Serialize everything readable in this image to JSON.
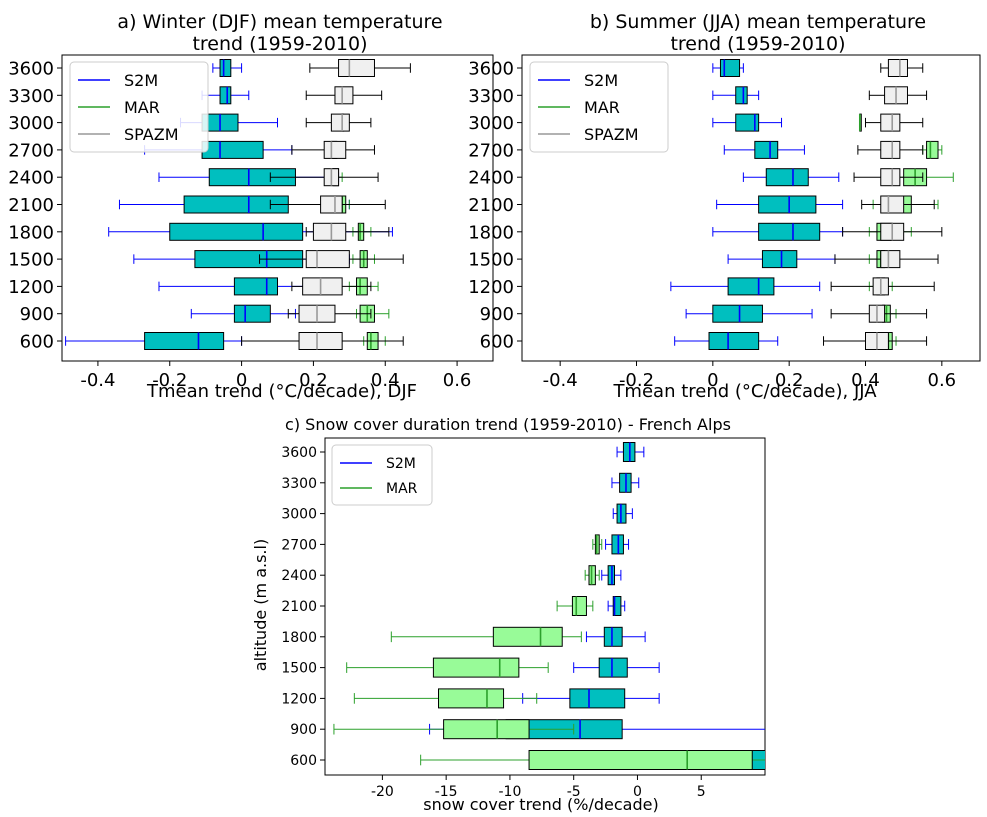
{
  "panels": [
    {
      "title_line1": "a) Winter (DJF) mean temperature",
      "title_line2": "trend (1959-2010)",
      "xlabel": "Tmean trend (°C/decade), DJF"
    },
    {
      "title_line1": "b) Summer (JJA) mean temperature",
      "title_line2": "trend (1959-2010)",
      "xlabel": "Tmean trend (°C/decade), JJA"
    },
    {
      "title_line1": "c) Snow cover duration trend (1959-2010) - French Alps",
      "xlabel": "snow cover trend (%/decade)",
      "ylabel": "altitude (m a.s.l)"
    }
  ],
  "colors": {
    "S2M_line": "#0000ff",
    "S2M_fill": "#00bfbf",
    "MAR_line": "#2ca02c",
    "MAR_fill": "#98fb98",
    "SPAZM_line": "#999999",
    "SPAZM_fill": "#f0f0f0"
  },
  "chart_data": [
    {
      "type": "boxplot",
      "title": "a) Winter (DJF) mean temperature trend (1959-2010)",
      "xlabel": "Tmean trend (°C/decade), DJF",
      "xlim": [
        -0.5,
        0.7
      ],
      "xticks": [
        -0.4,
        -0.2,
        0,
        0.2,
        0.4,
        0.6
      ],
      "xtick_labels": [
        "-0.4",
        "-0.2",
        "0",
        "0.2",
        "0.4",
        "0.6"
      ],
      "categories": [
        600,
        900,
        1200,
        1500,
        1800,
        2100,
        2400,
        2700,
        3000,
        3300,
        3600
      ],
      "category_labels": [
        "600",
        "900",
        "1200",
        "1500",
        "1800",
        "2100",
        "2400",
        "2700",
        "3000",
        "3300",
        "3600"
      ],
      "legend": {
        "position": "upper left",
        "entries": [
          "S2M",
          "MAR",
          "SPAZM"
        ]
      },
      "series": [
        {
          "name": "S2M",
          "boxes": [
            [
              -0.49,
              -0.27,
              -0.12,
              -0.05,
              0.0
            ],
            [
              -0.14,
              -0.02,
              0.01,
              0.08,
              0.15
            ],
            [
              -0.23,
              -0.02,
              0.07,
              0.1,
              0.2
            ],
            [
              -0.3,
              -0.13,
              0.07,
              0.17,
              0.3
            ],
            [
              -0.37,
              -0.2,
              0.06,
              0.17,
              0.42
            ],
            [
              -0.34,
              -0.16,
              0.02,
              0.13,
              0.3
            ],
            [
              -0.23,
              -0.09,
              0.02,
              0.15,
              0.27
            ],
            [
              -0.27,
              -0.11,
              -0.06,
              0.06,
              0.14
            ],
            [
              -0.17,
              -0.11,
              -0.06,
              -0.01,
              0.1
            ],
            [
              -0.11,
              -0.06,
              -0.04,
              -0.03,
              0.02
            ],
            [
              -0.08,
              -0.06,
              -0.05,
              -0.03,
              0.0
            ]
          ]
        },
        {
          "name": "MAR",
          "boxes": [
            [
              0.34,
              0.35,
              0.36,
              0.38,
              0.4
            ],
            [
              0.32,
              0.33,
              0.35,
              0.37,
              0.41
            ],
            [
              0.3,
              0.32,
              0.33,
              0.35,
              0.38
            ],
            [
              0.31,
              0.33,
              0.34,
              0.35,
              0.37
            ],
            [
              0.31,
              0.325,
              0.33,
              0.34,
              0.36
            ],
            [
              0.27,
              0.275,
              0.28,
              0.29,
              0.3
            ],
            [
              0.24,
              0.255,
              0.26,
              0.27,
              0.28
            ],
            [
              0.24,
              0.25,
              0.255,
              0.265,
              0.275
            ],
            [
              0.28,
              0.28,
              0.28,
              0.28,
              0.28
            ],
            null,
            null
          ]
        },
        {
          "name": "SPAZM",
          "boxes": [
            [
              0.0,
              0.16,
              0.21,
              0.28,
              0.45
            ],
            [
              0.13,
              0.16,
              0.21,
              0.26,
              0.36
            ],
            [
              0.14,
              0.17,
              0.22,
              0.28,
              0.36
            ],
            [
              0.05,
              0.18,
              0.21,
              0.3,
              0.45
            ],
            [
              0.18,
              0.2,
              0.25,
              0.29,
              0.41
            ],
            [
              0.08,
              0.22,
              0.26,
              0.28,
              0.4
            ],
            [
              0.08,
              0.23,
              0.25,
              0.27,
              0.38
            ],
            [
              0.14,
              0.23,
              0.25,
              0.29,
              0.37
            ],
            [
              0.18,
              0.25,
              0.28,
              0.3,
              0.36
            ],
            [
              0.18,
              0.26,
              0.28,
              0.31,
              0.39
            ],
            [
              0.19,
              0.27,
              0.3,
              0.37,
              0.47
            ]
          ]
        }
      ]
    },
    {
      "type": "boxplot",
      "title": "b) Summer (JJA) mean temperature trend (1959-2010)",
      "xlabel": "Tmean trend (°C/decade), JJA",
      "xlim": [
        -0.5,
        0.7
      ],
      "xticks": [
        -0.4,
        -0.2,
        0,
        0.2,
        0.4,
        0.6
      ],
      "xtick_labels": [
        "-0.4",
        "-0.2",
        "0",
        "0.2",
        "0.4",
        "0.6"
      ],
      "categories": [
        600,
        900,
        1200,
        1500,
        1800,
        2100,
        2400,
        2700,
        3000,
        3300,
        3600
      ],
      "category_labels": [
        "600",
        "900",
        "1200",
        "1500",
        "1800",
        "2100",
        "2400",
        "2700",
        "3000",
        "3300",
        "3600"
      ],
      "legend": {
        "position": "upper left",
        "entries": [
          "S2M",
          "MAR",
          "SPAZM"
        ]
      },
      "series": [
        {
          "name": "S2M",
          "boxes": [
            [
              -0.1,
              -0.01,
              0.04,
              0.12,
              0.17
            ],
            [
              -0.07,
              0.0,
              0.07,
              0.13,
              0.26
            ],
            [
              -0.11,
              0.04,
              0.12,
              0.16,
              0.28
            ],
            [
              0.04,
              0.13,
              0.18,
              0.22,
              0.32
            ],
            [
              0.0,
              0.12,
              0.21,
              0.28,
              0.34
            ],
            [
              0.01,
              0.12,
              0.2,
              0.27,
              0.34
            ],
            [
              0.08,
              0.14,
              0.21,
              0.25,
              0.33
            ],
            [
              0.03,
              0.11,
              0.15,
              0.17,
              0.24
            ],
            [
              0.0,
              0.06,
              0.11,
              0.12,
              0.18
            ],
            [
              0.0,
              0.06,
              0.08,
              0.09,
              0.12
            ],
            [
              0.0,
              0.02,
              0.03,
              0.07,
              0.08
            ]
          ]
        },
        {
          "name": "MAR",
          "boxes": [
            [
              0.44,
              0.455,
              0.46,
              0.47,
              0.48
            ],
            [
              0.43,
              0.445,
              0.455,
              0.465,
              0.48
            ],
            [
              0.41,
              0.43,
              0.44,
              0.45,
              0.47
            ],
            [
              0.41,
              0.43,
              0.44,
              0.45,
              0.47
            ],
            [
              0.41,
              0.43,
              0.45,
              0.47,
              0.52
            ],
            [
              0.42,
              0.45,
              0.48,
              0.52,
              0.59
            ],
            [
              0.47,
              0.5,
              0.53,
              0.56,
              0.63
            ],
            [
              0.55,
              0.56,
              0.57,
              0.59,
              0.6
            ],
            [
              0.385,
              0.385,
              0.385,
              0.385,
              0.385
            ],
            null,
            null
          ]
        },
        {
          "name": "SPAZM",
          "boxes": [
            [
              0.29,
              0.4,
              0.43,
              0.46,
              0.56
            ],
            [
              0.31,
              0.41,
              0.43,
              0.45,
              0.56
            ],
            [
              0.31,
              0.42,
              0.44,
              0.46,
              0.58
            ],
            [
              0.32,
              0.44,
              0.46,
              0.49,
              0.59
            ],
            [
              0.34,
              0.44,
              0.47,
              0.5,
              0.6
            ],
            [
              0.39,
              0.44,
              0.46,
              0.5,
              0.58
            ],
            [
              0.37,
              0.44,
              0.47,
              0.49,
              0.55
            ],
            [
              0.38,
              0.44,
              0.47,
              0.49,
              0.55
            ],
            [
              0.4,
              0.44,
              0.47,
              0.49,
              0.55
            ],
            [
              0.41,
              0.45,
              0.48,
              0.51,
              0.56
            ],
            [
              0.44,
              0.46,
              0.49,
              0.51,
              0.55
            ]
          ]
        }
      ]
    },
    {
      "type": "boxplot",
      "title": "c) Snow cover duration trend (1959-2010) - French Alps",
      "xlabel": "snow cover trend (%/decade)",
      "ylabel": "altitude (m a.s.l)",
      "xlim": [
        -24.5,
        10
      ],
      "xticks": [
        -20,
        -15,
        -10,
        -5,
        0,
        5
      ],
      "xtick_labels": [
        "-20",
        "-15",
        "-10",
        "-5",
        "0",
        "5"
      ],
      "categories": [
        600,
        900,
        1200,
        1500,
        1800,
        2100,
        2400,
        2700,
        3000,
        3300,
        3600
      ],
      "category_labels": [
        "600",
        "900",
        "1200",
        "1500",
        "1800",
        "2100",
        "2400",
        "2700",
        "3000",
        "3300",
        "3600"
      ],
      "legend": {
        "position": "upper left",
        "entries": [
          "S2M",
          "MAR"
        ]
      },
      "series": [
        {
          "name": "S2M",
          "boxes": [
            [
              -7.0,
              -6.8,
              5.6,
              12.0,
              14.0
            ],
            [
              -16.3,
              -10.3,
              -4.5,
              -1.2,
              14.0
            ],
            [
              -9.0,
              -5.3,
              -3.8,
              -1.0,
              1.7
            ],
            [
              -5.0,
              -3.0,
              -2.0,
              -0.8,
              1.7
            ],
            [
              -4.0,
              -2.6,
              -2.0,
              -1.2,
              0.6
            ],
            [
              -2.3,
              -1.9,
              -1.8,
              -1.3,
              -1.0
            ],
            [
              -2.8,
              -2.3,
              -2.0,
              -1.8,
              -1.3
            ],
            [
              -2.5,
              -2.0,
              -1.5,
              -1.1,
              -0.7
            ],
            [
              -1.9,
              -1.6,
              -1.3,
              -0.9,
              -0.4
            ],
            [
              -2.0,
              -1.4,
              -0.9,
              -0.5,
              0.1
            ],
            [
              -1.6,
              -1.1,
              -0.6,
              -0.2,
              0.5
            ]
          ]
        },
        {
          "name": "MAR",
          "boxes": [
            [
              -17.0,
              -8.5,
              3.9,
              9.0,
              15.0
            ],
            [
              -23.8,
              -15.2,
              -11.0,
              -8.5,
              -5.0
            ],
            [
              -22.2,
              -15.6,
              -11.8,
              -10.5,
              -7.9
            ],
            [
              -22.8,
              -16.0,
              -10.8,
              -9.3,
              -7.0
            ],
            [
              -19.3,
              -11.3,
              -7.6,
              -5.9,
              -4.4
            ],
            [
              -6.3,
              -5.1,
              -4.8,
              -4.0,
              -3.5
            ],
            [
              -4.1,
              -3.8,
              -3.6,
              -3.3,
              -3.0
            ],
            [
              -3.5,
              -3.3,
              -3.2,
              -3.0,
              -2.8
            ],
            null,
            null,
            null
          ]
        }
      ]
    }
  ]
}
